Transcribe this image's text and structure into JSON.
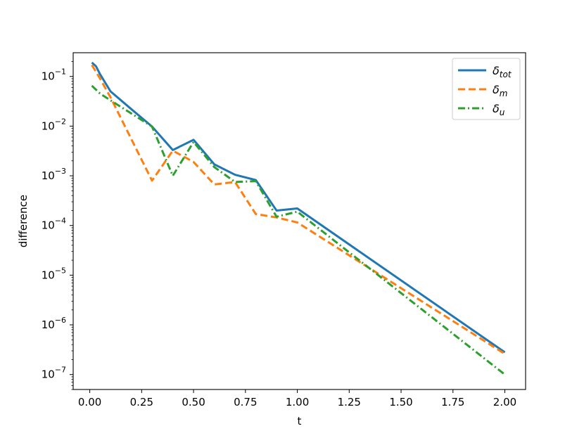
{
  "chart_data": {
    "type": "line",
    "title": "",
    "xlabel": "t",
    "ylabel": "difference",
    "xlim": [
      -0.08,
      2.1
    ],
    "ylim": [
      5e-08,
      0.3
    ],
    "yscale": "log",
    "grid": false,
    "legend_position": "top-right",
    "x_ticks": [
      {
        "value": 0.0,
        "label": "0.00"
      },
      {
        "value": 0.25,
        "label": "0.25"
      },
      {
        "value": 0.5,
        "label": "0.50"
      },
      {
        "value": 0.75,
        "label": "0.75"
      },
      {
        "value": 1.0,
        "label": "1.00"
      },
      {
        "value": 1.25,
        "label": "1.25"
      },
      {
        "value": 1.5,
        "label": "1.50"
      },
      {
        "value": 1.75,
        "label": "1.75"
      },
      {
        "value": 2.0,
        "label": "2.00"
      }
    ],
    "y_ticks": [
      {
        "value": 0.1,
        "base": "10",
        "exp": "−1"
      },
      {
        "value": 0.01,
        "base": "10",
        "exp": "−2"
      },
      {
        "value": 0.001,
        "base": "10",
        "exp": "−3"
      },
      {
        "value": 0.0001,
        "base": "10",
        "exp": "−4"
      },
      {
        "value": 1e-05,
        "base": "10",
        "exp": "−5"
      },
      {
        "value": 1e-06,
        "base": "10",
        "exp": "−6"
      },
      {
        "value": 1e-07,
        "base": "10",
        "exp": "−7"
      }
    ],
    "series": [
      {
        "name": "δtot",
        "symbol": "δ",
        "subscript": "tot",
        "color": "#1f77b4",
        "dash": "solid",
        "x": [
          0.01,
          0.03,
          0.05,
          0.1,
          0.2,
          0.3,
          0.4,
          0.5,
          0.6,
          0.7,
          0.8,
          0.9,
          1.0,
          2.0
        ],
        "y": [
          0.19,
          0.16,
          0.11,
          0.05,
          0.022,
          0.0098,
          0.0033,
          0.0053,
          0.0017,
          0.00105,
          0.00082,
          0.0002,
          0.00022,
          2.8e-07
        ]
      },
      {
        "name": "δm",
        "symbol": "δ",
        "subscript": "m",
        "color": "#ff7f0e",
        "dash": "dashed",
        "x": [
          0.01,
          0.05,
          0.1,
          0.2,
          0.3,
          0.4,
          0.5,
          0.6,
          0.7,
          0.8,
          0.9,
          1.0,
          2.0
        ],
        "y": [
          0.17,
          0.09,
          0.038,
          0.0055,
          0.0008,
          0.0032,
          0.0019,
          0.00067,
          0.00075,
          0.00017,
          0.000145,
          0.000115,
          2.6e-07
        ]
      },
      {
        "name": "δu",
        "symbol": "δ",
        "subscript": "u",
        "color": "#2ca02c",
        "dash": "dashdot",
        "x": [
          0.01,
          0.05,
          0.1,
          0.2,
          0.3,
          0.4,
          0.5,
          0.6,
          0.7,
          0.8,
          0.9,
          1.0,
          2.0
        ],
        "y": [
          0.065,
          0.045,
          0.033,
          0.018,
          0.0098,
          0.001,
          0.0048,
          0.0015,
          0.00075,
          0.00078,
          0.00015,
          0.00019,
          1e-07
        ]
      }
    ]
  }
}
